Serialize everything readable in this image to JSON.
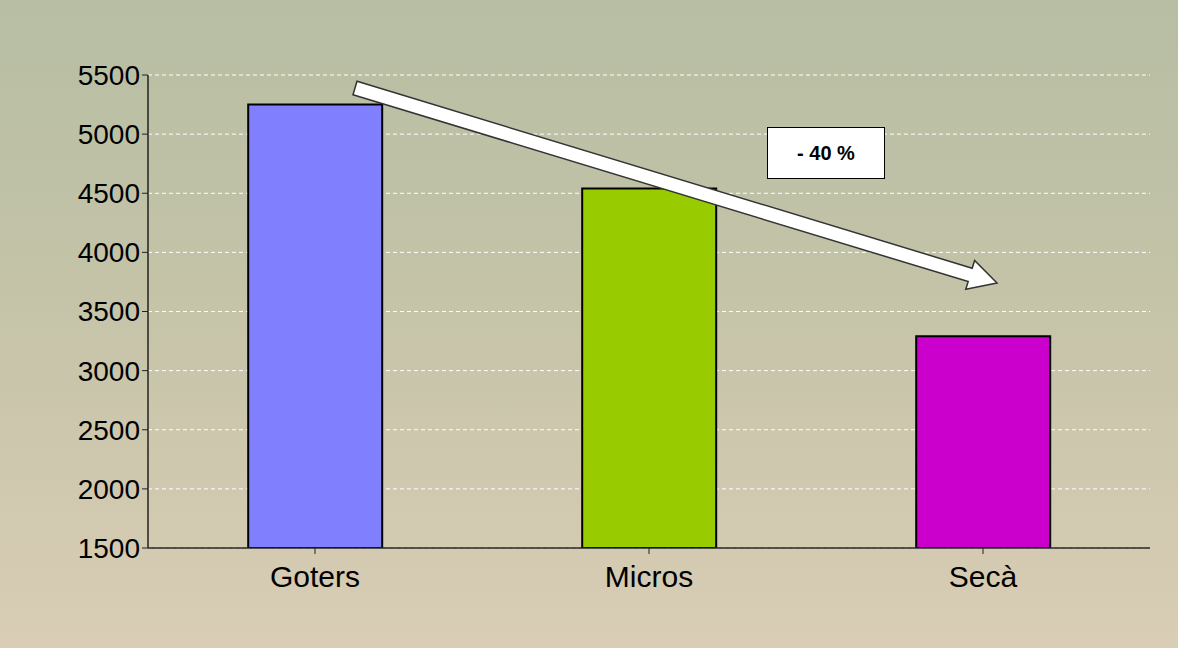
{
  "chart_data": {
    "type": "bar",
    "categories": [
      "Goters",
      "Micros",
      "Secà"
    ],
    "values": [
      5250,
      4540,
      3290
    ],
    "colors": [
      "#8080ff",
      "#99cc00",
      "#cc00cc"
    ],
    "ylim": [
      1500,
      5500
    ],
    "yticks": [
      1500,
      2000,
      2500,
      3000,
      3500,
      4000,
      4500,
      5000,
      5500
    ],
    "grid": true,
    "annotation": "- 40 %"
  }
}
